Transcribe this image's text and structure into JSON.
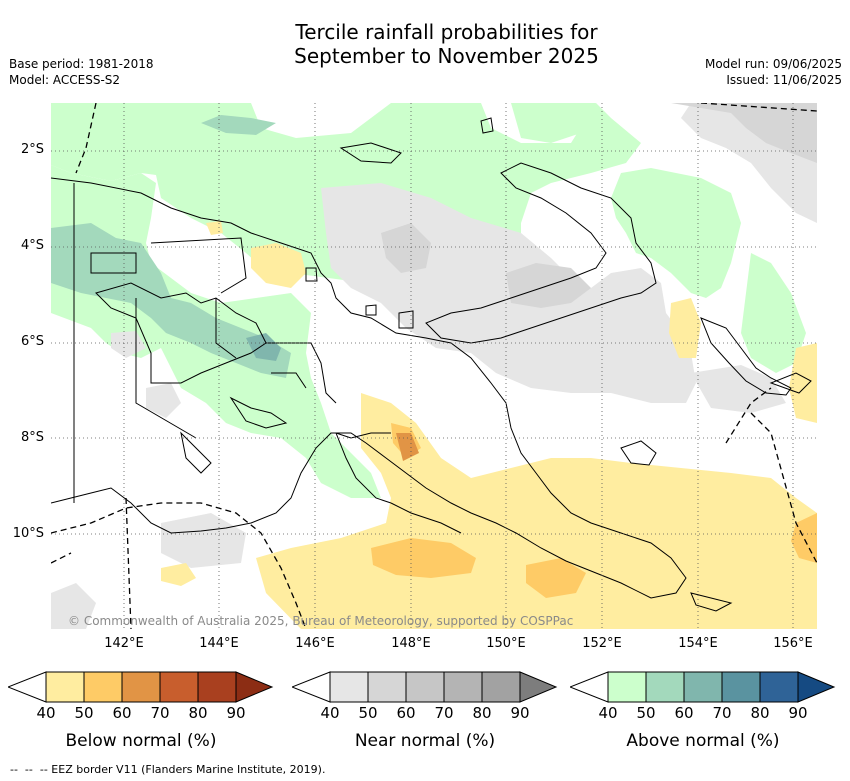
{
  "title_line1": "Tercile rainfall probabilities for",
  "title_line2": "September to November 2025",
  "meta": {
    "base_period": "Base period: 1981-2018",
    "model": "Model: ACCESS-S2",
    "model_run": "Model run: 09/06/2025",
    "issued": "Issued: 11/06/2025"
  },
  "lat_ticks": [
    "2°S",
    "4°S",
    "6°S",
    "8°S",
    "10°S"
  ],
  "lon_ticks": [
    "142°E",
    "144°E",
    "146°E",
    "148°E",
    "150°E",
    "152°E",
    "154°E",
    "156°E"
  ],
  "copyright": "© Commonwealth of Australia 2025, Bureau of Meteorology, supported by COSPPac",
  "colorbars": [
    {
      "title": "Below normal (%)",
      "labels": [
        "40",
        "50",
        "60",
        "70",
        "80",
        "90"
      ],
      "colors": [
        "#ffeda0",
        "#fecb66",
        "#e19445",
        "#c85e2d",
        "#a9401f",
        "#8c2d14"
      ]
    },
    {
      "title": "Near normal (%)",
      "labels": [
        "40",
        "50",
        "60",
        "70",
        "80",
        "90"
      ],
      "colors": [
        "#e6e6e6",
        "#d6d6d6",
        "#c6c6c6",
        "#b4b4b4",
        "#a2a2a2",
        "#7d7d7d"
      ]
    },
    {
      "title": "Above normal (%)",
      "labels": [
        "40",
        "50",
        "60",
        "70",
        "80",
        "90"
      ],
      "colors": [
        "#ccffcc",
        "#a3d9bc",
        "#80b6ad",
        "#5a93a0",
        "#2f6397",
        "#154a82"
      ]
    }
  ],
  "footer": "-- EEZ border V11 (Flanders Marine Institute, 2019)."
}
